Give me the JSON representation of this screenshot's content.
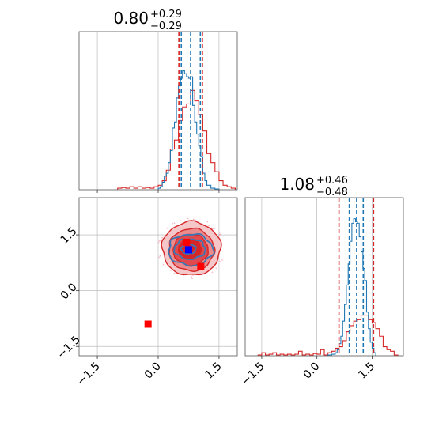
{
  "chart_data": {
    "type": "corner",
    "colors": {
      "red": "#d62728",
      "blue": "#1f77b4",
      "marker_blue": "#0000ff",
      "marker_red": "#ff0000",
      "grid": "#b0b0b0"
    },
    "panels": [
      {
        "id": "hist_param1",
        "type": "histogram",
        "title": {
          "value": "0.80",
          "plus": "+0.29",
          "minus": "−0.29"
        },
        "xlim": [
          -1.95,
          1.95
        ],
        "ylim": [
          0,
          1.05
        ],
        "grid_x": [
          -1.5,
          0.0,
          1.5
        ],
        "vlines_red": [
          0.51,
          1.09
        ],
        "vlines_blue": [
          0.57,
          1.04,
          0.8
        ],
        "series": [
          {
            "name": "",
            "color": "red",
            "edges": [
              -1.0,
              -0.9,
              -0.8,
              -0.7,
              -0.6,
              -0.5,
              -0.4,
              -0.3,
              -0.2,
              -0.1,
              0.0,
              0.1,
              0.2,
              0.3,
              0.4,
              0.5,
              0.6,
              0.7,
              0.8,
              0.9,
              1.0,
              1.1,
              1.2,
              1.3,
              1.4,
              1.5,
              1.6,
              1.7,
              1.8,
              1.9
            ],
            "heights": [
              0.01,
              0.015,
              0.01,
              0.02,
              0.01,
              0.02,
              0.01,
              0.015,
              0.01,
              0.02,
              0.03,
              0.06,
              0.13,
              0.27,
              0.33,
              0.46,
              0.55,
              0.57,
              0.66,
              0.59,
              0.5,
              0.39,
              0.24,
              0.18,
              0.12,
              0.06,
              0.03,
              0.02,
              0.01
            ]
          },
          {
            "name": "",
            "color": "blue",
            "edges": [
              0.0,
              0.05,
              0.1,
              0.15,
              0.2,
              0.25,
              0.3,
              0.35,
              0.4,
              0.45,
              0.5,
              0.55,
              0.6,
              0.65,
              0.7,
              0.75,
              0.8,
              0.85,
              0.9,
              0.95,
              1.0,
              1.05,
              1.1,
              1.15,
              1.2,
              1.25,
              1.3,
              1.35,
              1.4,
              1.45,
              1.5
            ],
            "heights": [
              0.01,
              0.02,
              0.05,
              0.09,
              0.11,
              0.18,
              0.26,
              0.41,
              0.45,
              0.61,
              0.69,
              0.74,
              0.79,
              0.77,
              0.75,
              0.74,
              0.75,
              0.56,
              0.45,
              0.37,
              0.29,
              0.22,
              0.11,
              0.06,
              0.03,
              0.03,
              0.01,
              0.01,
              0.005,
              0.005
            ]
          }
        ]
      },
      {
        "id": "hist_param2",
        "type": "histogram",
        "title": {
          "value": "1.08",
          "plus": "+0.46",
          "minus": "−0.48"
        },
        "xlim": [
          -1.95,
          2.35
        ],
        "ylim": [
          0,
          1.05
        ],
        "grid_x": [
          -1.5,
          0.0,
          1.5
        ],
        "tick_labels_x": [
          "−1.5",
          "0.0",
          "1.5"
        ],
        "vlines_red": [
          0.6,
          1.54
        ],
        "vlines_blue": [
          0.88,
          1.26,
          1.08
        ],
        "series": [
          {
            "name": "",
            "color": "red",
            "edges": [
              -1.6,
              -1.5,
              -1.4,
              -1.3,
              -1.2,
              -1.1,
              -1.0,
              -0.9,
              -0.8,
              -0.7,
              -0.6,
              -0.5,
              -0.4,
              -0.3,
              -0.2,
              -0.1,
              0.0,
              0.1,
              0.2,
              0.3,
              0.4,
              0.5,
              0.6,
              0.7,
              0.8,
              0.9,
              1.0,
              1.1,
              1.2,
              1.3,
              1.4,
              1.5,
              1.6,
              1.7,
              1.8,
              1.9,
              2.0,
              2.1,
              2.2
            ],
            "heights": [
              0.005,
              0.02,
              0.005,
              0.01,
              0.02,
              0.005,
              0.01,
              0.005,
              0.01,
              0.005,
              0.01,
              0.03,
              0.005,
              0.01,
              0.005,
              0.015,
              0.01,
              0.04,
              0.005,
              0.02,
              0.03,
              0.05,
              0.06,
              0.1,
              0.16,
              0.2,
              0.23,
              0.24,
              0.27,
              0.27,
              0.24,
              0.22,
              0.18,
              0.13,
              0.06,
              0.04,
              0.03,
              0.005
            ]
          },
          {
            "name": "",
            "color": "blue",
            "edges": [
              0.3,
              0.35,
              0.4,
              0.45,
              0.5,
              0.55,
              0.6,
              0.65,
              0.7,
              0.75,
              0.8,
              0.85,
              0.9,
              0.95,
              1.0,
              1.05,
              1.1,
              1.15,
              1.2,
              1.25,
              1.3,
              1.35,
              1.4,
              1.45,
              1.5,
              1.55,
              1.6
            ],
            "heights": [
              0.005,
              0.005,
              0.01,
              0.01,
              0.02,
              0.04,
              0.08,
              0.13,
              0.23,
              0.34,
              0.47,
              0.61,
              0.76,
              0.88,
              0.91,
              0.89,
              0.88,
              0.79,
              0.69,
              0.58,
              0.5,
              0.29,
              0.18,
              0.09,
              0.05,
              0.02
            ]
          }
        ]
      },
      {
        "id": "scatter_2d",
        "type": "contour",
        "xlim": [
          -1.95,
          1.95
        ],
        "ylim": [
          -1.75,
          2.5
        ],
        "grid_x": [
          -1.5,
          0.0,
          1.5
        ],
        "grid_y": [
          -1.5,
          0.0,
          1.5
        ],
        "tick_labels_x": [
          "−1.5",
          "0.0",
          "1.5"
        ],
        "tick_labels_y": [
          "−1.5",
          "0.0",
          "1.5"
        ],
        "red_levels": [
          {
            "cx": 0.82,
            "cy": 1.13,
            "rx": 0.72,
            "ry": 0.72
          },
          {
            "cx": 0.82,
            "cy": 1.1,
            "rx": 0.56,
            "ry": 0.57
          },
          {
            "cx": 0.8,
            "cy": 1.1,
            "rx": 0.43,
            "ry": 0.42
          },
          {
            "cx": 0.78,
            "cy": 1.12,
            "rx": 0.28,
            "ry": 0.26
          }
        ],
        "blue_levels": [
          {
            "cx": 0.8,
            "cy": 1.1,
            "rx": 0.55,
            "ry": 0.42
          },
          {
            "cx": 0.78,
            "cy": 1.12,
            "rx": 0.38,
            "ry": 0.27
          },
          {
            "cx": 0.75,
            "cy": 1.12,
            "rx": 0.18,
            "ry": 0.13
          }
        ],
        "markers": [
          {
            "color": "marker_blue",
            "x": 0.75,
            "y": 1.1
          },
          {
            "color": "marker_red",
            "x": 1.05,
            "y": 0.65
          },
          {
            "color": "marker_red",
            "x": 0.7,
            "y": 1.3
          },
          {
            "color": "marker_red",
            "x": -0.25,
            "y": -0.9
          }
        ]
      }
    ]
  }
}
